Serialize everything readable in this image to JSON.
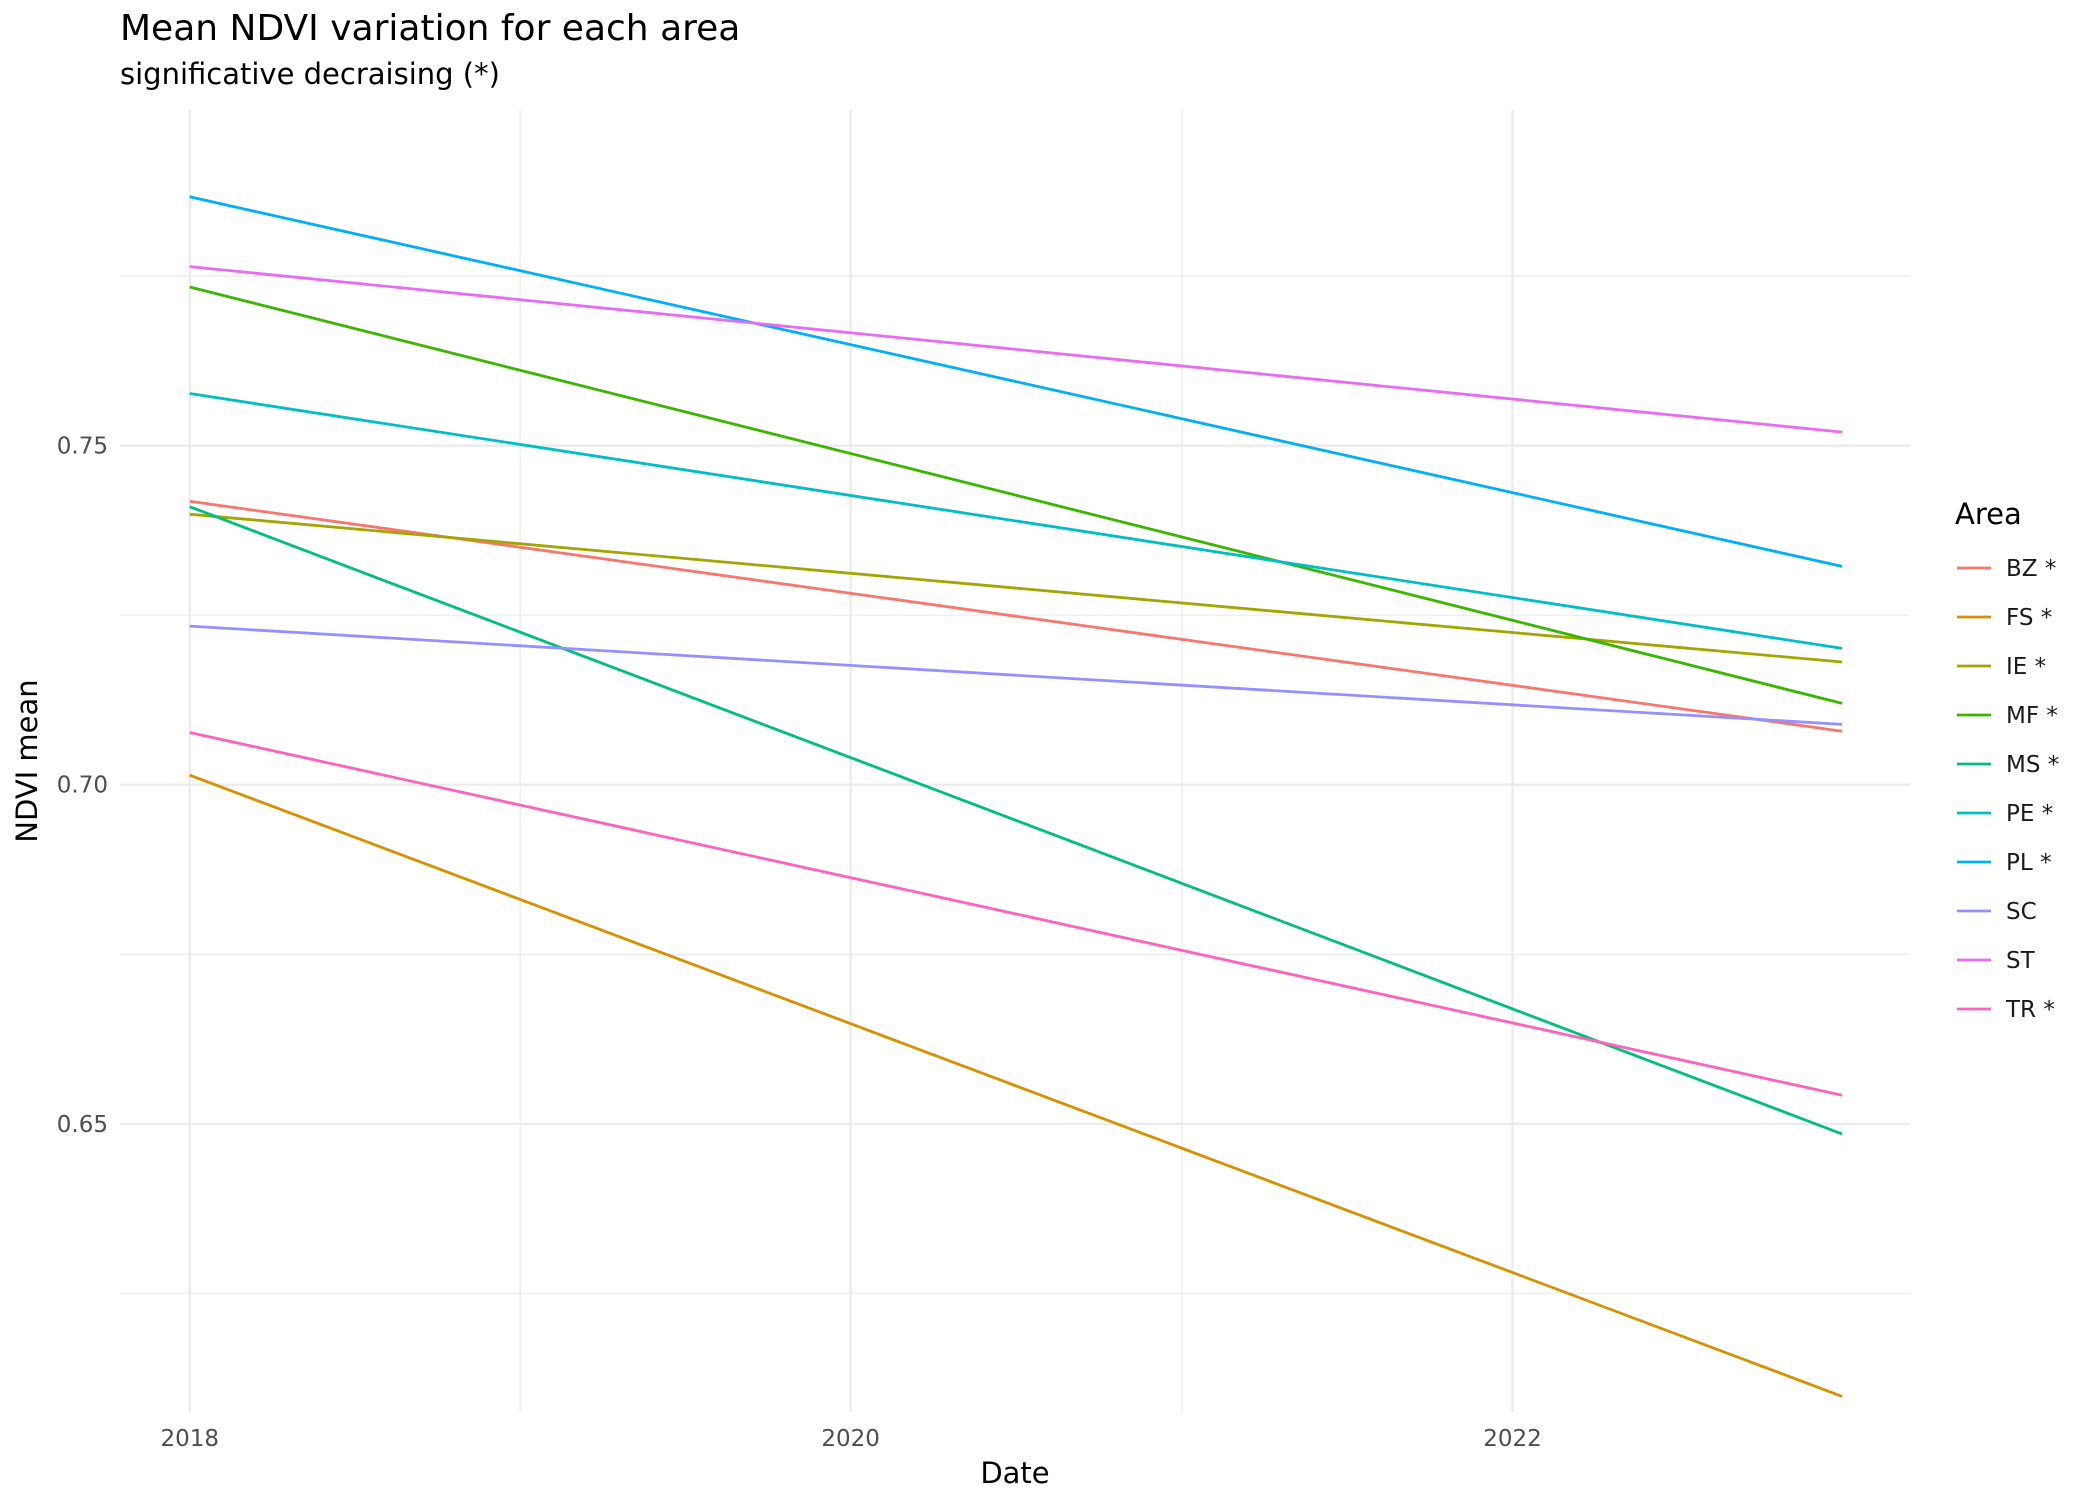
{
  "chart_data": {
    "type": "line",
    "title": "Mean NDVI variation for each area",
    "subtitle": "significative decraising (*)",
    "xlabel": "Date",
    "ylabel": "NDVI mean",
    "xlim": [
      "2017-10-16",
      "2023-03-16"
    ],
    "ylim": [
      0.6075,
      0.7995
    ],
    "x_ticks": [
      {
        "x": "2018-01-01",
        "label": "2018"
      },
      {
        "x": "2020-01-01",
        "label": "2020"
      },
      {
        "x": "2022-01-01",
        "label": "2022"
      }
    ],
    "x_minor_ticks": [
      "2019-01-01",
      "2021-01-01"
    ],
    "y_ticks": [
      {
        "y": 0.65,
        "label": "0.65"
      },
      {
        "y": 0.7,
        "label": "0.70"
      },
      {
        "y": 0.75,
        "label": "0.75"
      }
    ],
    "y_minor_ticks": [
      0.625,
      0.675,
      0.725,
      0.775
    ],
    "grid": true,
    "legend": {
      "title": "Area",
      "position": "right"
    },
    "series": [
      {
        "name": "BZ *",
        "color": "#F8766D",
        "x": [
          "2018-01-01",
          "2022-12-31"
        ],
        "values": [
          0.7418,
          0.7079
        ]
      },
      {
        "name": "FS *",
        "color": "#D89000",
        "x": [
          "2018-01-01",
          "2022-12-31"
        ],
        "values": [
          0.7014,
          0.6098
        ]
      },
      {
        "name": "IE *",
        "color": "#A3A500",
        "x": [
          "2018-01-01",
          "2022-12-31"
        ],
        "values": [
          0.7399,
          0.7181
        ]
      },
      {
        "name": "MF *",
        "color": "#39B600",
        "x": [
          "2018-01-01",
          "2022-12-31"
        ],
        "values": [
          0.7734,
          0.712
        ]
      },
      {
        "name": "MS *",
        "color": "#00BF7D",
        "x": [
          "2018-01-01",
          "2022-12-31"
        ],
        "values": [
          0.741,
          0.6485
        ]
      },
      {
        "name": "PE *",
        "color": "#00BFC4",
        "x": [
          "2018-01-01",
          "2022-12-31"
        ],
        "values": [
          0.7577,
          0.7201
        ]
      },
      {
        "name": "PL *",
        "color": "#00B0F6",
        "x": [
          "2018-01-01",
          "2022-12-31"
        ],
        "values": [
          0.7867,
          0.7322
        ]
      },
      {
        "name": "SC",
        "color": "#9590FF",
        "x": [
          "2018-01-01",
          "2022-12-31"
        ],
        "values": [
          0.7234,
          0.7089
        ]
      },
      {
        "name": "ST",
        "color": "#E76BF3",
        "x": [
          "2018-01-01",
          "2022-12-31"
        ],
        "values": [
          0.7764,
          0.752
        ]
      },
      {
        "name": "TR *",
        "color": "#FF62BC",
        "x": [
          "2018-01-01",
          "2022-12-31"
        ],
        "values": [
          0.7077,
          0.6542
        ]
      }
    ]
  }
}
